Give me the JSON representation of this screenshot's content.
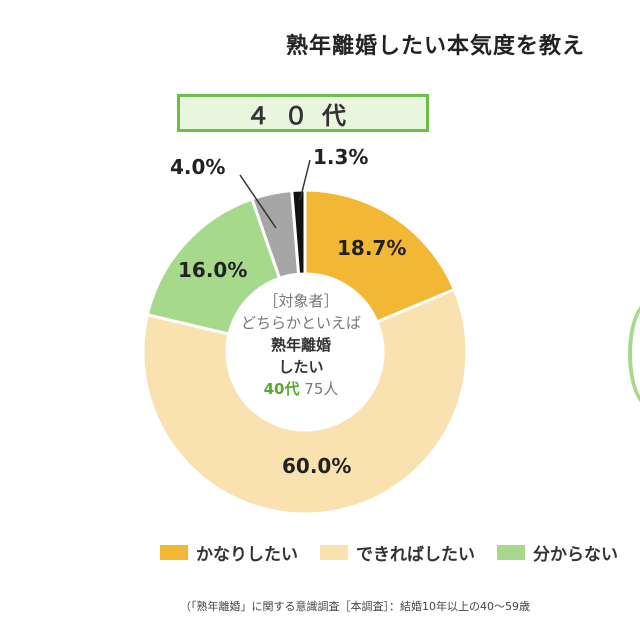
{
  "chart_data": {
    "type": "pie",
    "variant": "donut",
    "title": "熟年離婚したい本気度を教え",
    "panel_label": "４０代",
    "slices": [
      {
        "category": "かなりしたい",
        "value": 18.7,
        "label": "18.7%",
        "color": "#f2b835"
      },
      {
        "category": "できればしたい",
        "value": 60.0,
        "label": "60.0%",
        "color": "#fae2b0"
      },
      {
        "category": "分からない",
        "value": 16.0,
        "label": "16.0%",
        "color": "#a7d98c"
      },
      {
        "category": "",
        "value": 4.0,
        "label": "4.0%",
        "color": "#a6a6a6"
      },
      {
        "category": "",
        "value": 1.3,
        "label": "1.3%",
        "color": "#111111"
      }
    ],
    "center_text": {
      "line1": "［対象者］",
      "line2": "どちらかといえば",
      "line3": "熟年離婚",
      "line4": "したい",
      "age": "40代",
      "count": "75人"
    },
    "legend": [
      {
        "label": "かなりしたい",
        "color": "#f2b835"
      },
      {
        "label": "できればしたい",
        "color": "#fae2b0"
      },
      {
        "label": "分からない",
        "color": "#a7d98c"
      }
    ],
    "legend_position": "bottom",
    "footnote": "（「熟年離婚」に関する意識調査［本調査］：結婚10年以上の40〜59歳"
  }
}
